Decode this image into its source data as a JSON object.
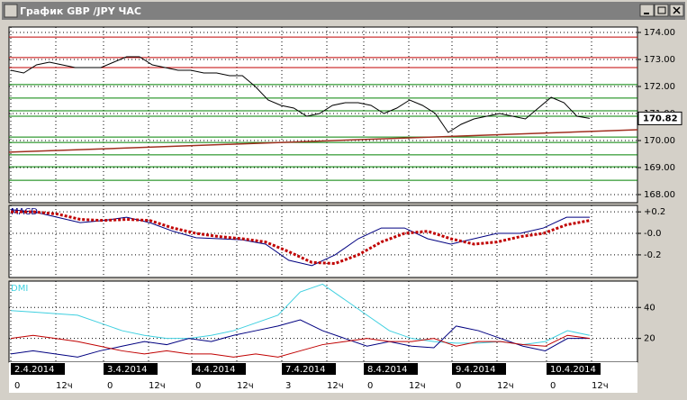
{
  "window": {
    "title": "График GBP /JPY  ЧАС"
  },
  "chart_data": [
    {
      "type": "line",
      "ylim": [
        167.7,
        174.2
      ],
      "yticks": [
        {
          "value": 174,
          "label": "174.00"
        },
        {
          "value": 173,
          "label": "173.00"
        },
        {
          "value": 172,
          "label": "172.00"
        },
        {
          "value": 171,
          "label": "171.00"
        },
        {
          "value": 170,
          "label": "170.00"
        },
        {
          "value": 169,
          "label": "169.00"
        },
        {
          "value": 168,
          "label": "168.00"
        }
      ],
      "current_price": {
        "value": 170.82,
        "label": "170.82"
      },
      "levels": [
        {
          "value": 173.83,
          "color": "#c00000"
        },
        {
          "value": 173.07,
          "color": "#c00000"
        },
        {
          "value": 172.7,
          "color": "#c00000"
        },
        {
          "value": 172.07,
          "color": "#008000"
        },
        {
          "value": 171.57,
          "color": "#008000"
        },
        {
          "value": 171.1,
          "color": "#008000"
        },
        {
          "value": 170.9,
          "color": "#008000"
        },
        {
          "value": 170.13,
          "color": "#008000"
        },
        {
          "value": 169.93,
          "color": "#008000"
        },
        {
          "value": 169.47,
          "color": "#008000"
        },
        {
          "value": 169.03,
          "color": "#008000"
        },
        {
          "value": 168.53,
          "color": "#008000"
        }
      ],
      "trend_line": {
        "values": [
          169.57,
          170.4
        ],
        "color": "#a03020"
      },
      "series": [
        {
          "color": "#000000",
          "values": [
            172.6,
            172.5,
            172.8,
            172.9,
            172.8,
            172.7,
            172.7,
            172.7,
            172.9,
            173.1,
            173.1,
            172.8,
            172.7,
            172.6,
            172.6,
            172.5,
            172.5,
            172.4,
            172.4,
            172.0,
            171.5,
            171.3,
            171.2,
            170.9,
            171.0,
            171.3,
            171.4,
            171.4,
            171.3,
            171.0,
            171.2,
            171.5,
            171.3,
            171.0,
            170.3,
            170.6,
            170.8,
            170.9,
            171.0,
            170.9,
            170.8,
            171.2,
            171.6,
            171.4,
            170.9,
            170.82
          ]
        }
      ]
    },
    {
      "type": "line",
      "title": "MACD",
      "ylim": [
        -0.41,
        0.26
      ],
      "yticks": [
        {
          "value": 0.2,
          "label": "+0.2"
        },
        {
          "value": 0,
          "label": "-0.0"
        },
        {
          "value": -0.2,
          "label": "-0.2"
        }
      ],
      "series": [
        {
          "color": "#000080",
          "values": [
            0.22,
            0.2,
            0.15,
            0.1,
            0.12,
            0.15,
            0.1,
            0.02,
            -0.04,
            -0.05,
            -0.06,
            -0.1,
            -0.25,
            -0.3,
            -0.2,
            -0.05,
            0.05,
            0.05,
            -0.05,
            -0.1,
            -0.05,
            0.0,
            0.0,
            0.05,
            0.15,
            0.15
          ]
        },
        {
          "color": "#c00000",
          "dotted": true,
          "values": [
            0.2,
            0.2,
            0.18,
            0.13,
            0.12,
            0.13,
            0.12,
            0.05,
            0.0,
            -0.03,
            -0.05,
            -0.08,
            -0.17,
            -0.27,
            -0.28,
            -0.2,
            -0.08,
            0.0,
            0.02,
            -0.05,
            -0.1,
            -0.08,
            -0.03,
            0.0,
            0.08,
            0.12
          ]
        }
      ]
    },
    {
      "type": "line",
      "title": "DMI",
      "ylim": [
        4.7,
        57
      ],
      "yticks": [
        40,
        20
      ],
      "series": [
        {
          "color": "#40d0e0",
          "values": [
            38,
            37,
            36,
            35,
            30,
            25,
            22,
            20,
            20,
            22,
            25,
            30,
            35,
            50,
            55,
            45,
            35,
            25,
            20,
            18,
            17,
            17,
            18,
            16,
            18,
            25,
            22
          ]
        },
        {
          "color": "#000080",
          "values": [
            10,
            12,
            10,
            8,
            12,
            15,
            18,
            16,
            20,
            18,
            22,
            25,
            28,
            32,
            25,
            20,
            15,
            18,
            15,
            14,
            28,
            25,
            20,
            15,
            12,
            20,
            20
          ]
        },
        {
          "color": "#c00000",
          "values": [
            20,
            22,
            20,
            18,
            15,
            12,
            10,
            12,
            10,
            10,
            8,
            10,
            8,
            12,
            16,
            18,
            20,
            18,
            18,
            20,
            15,
            18,
            18,
            16,
            15,
            22,
            20
          ]
        }
      ]
    }
  ],
  "dates": [
    "2.4.2014",
    "3.4.2014",
    "4.4.2014",
    "7.4.2014",
    "8.4.2014",
    "9.4.2014",
    "10.4.2014"
  ],
  "hours": [
    [
      "0",
      "12ч"
    ],
    [
      "0",
      "12ч"
    ],
    [
      "0",
      "12ч"
    ],
    [
      "3",
      "12ч"
    ],
    [
      "0",
      "12ч"
    ],
    [
      "0",
      "12ч"
    ],
    [
      "0",
      "12ч"
    ]
  ]
}
